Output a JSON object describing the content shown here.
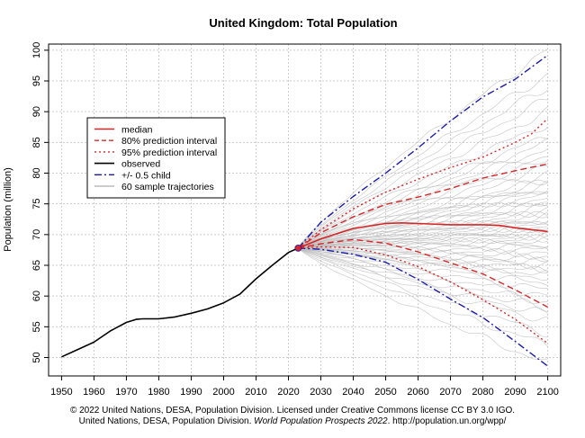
{
  "chart_data": {
    "type": "line",
    "title": "United Kingdom: Total Population",
    "xlabel": "",
    "ylabel": "Population (million)",
    "xlim": [
      1946,
      2104
    ],
    "ylim": [
      47,
      101
    ],
    "x_ticks": [
      1950,
      1960,
      1970,
      1980,
      1990,
      2000,
      2010,
      2020,
      2030,
      2040,
      2050,
      2060,
      2070,
      2080,
      2090,
      2100
    ],
    "y_ticks": [
      50,
      55,
      60,
      65,
      70,
      75,
      80,
      85,
      90,
      95,
      100
    ],
    "grid": true,
    "legend": {
      "position": "top-left",
      "entries": [
        {
          "label": "median",
          "color": "#d62728",
          "style": "solid"
        },
        {
          "label": "80% prediction interval",
          "color": "#d62728",
          "style": "dashed"
        },
        {
          "label": "95% prediction interval",
          "color": "#d62728",
          "style": "dotted"
        },
        {
          "label": "observed",
          "color": "#000000",
          "style": "solid"
        },
        {
          "label": "+/- 0.5 child",
          "color": "#1a1aaa",
          "style": "dashdot"
        },
        {
          "label": "60 sample trajectories",
          "color": "#bbbbbb",
          "style": "solid"
        }
      ]
    },
    "series": [
      {
        "name": "observed",
        "color": "#000000",
        "style": "solid",
        "x": [
          1950,
          1955,
          1960,
          1965,
          1970,
          1973,
          1975,
          1980,
          1985,
          1990,
          1995,
          2000,
          2005,
          2010,
          2015,
          2020,
          2023
        ],
        "y": [
          50.1,
          51.3,
          52.5,
          54.3,
          55.7,
          56.2,
          56.3,
          56.3,
          56.6,
          57.2,
          57.9,
          58.9,
          60.3,
          62.8,
          65.0,
          67.1,
          67.8
        ]
      },
      {
        "name": "median",
        "color": "#d62728",
        "style": "solid",
        "x": [
          2023,
          2030,
          2040,
          2050,
          2055,
          2060,
          2070,
          2080,
          2085,
          2090,
          2100
        ],
        "y": [
          67.8,
          69.3,
          71.0,
          71.8,
          71.9,
          71.8,
          71.6,
          71.6,
          71.5,
          71.1,
          70.5
        ]
      },
      {
        "name": "80% prediction interval (upper)",
        "color": "#d62728",
        "style": "dashed",
        "x": [
          2023,
          2030,
          2040,
          2050,
          2060,
          2070,
          2080,
          2090,
          2100
        ],
        "y": [
          67.8,
          70.3,
          72.9,
          74.9,
          76.1,
          77.5,
          79.2,
          80.4,
          81.5
        ]
      },
      {
        "name": "80% prediction interval (lower)",
        "color": "#d62728",
        "style": "dashed",
        "x": [
          2023,
          2030,
          2040,
          2050,
          2060,
          2070,
          2080,
          2090,
          2100
        ],
        "y": [
          67.8,
          68.5,
          69.2,
          68.6,
          67.2,
          65.4,
          63.6,
          61.0,
          58.2
        ]
      },
      {
        "name": "95% prediction interval (upper)",
        "color": "#d62728",
        "style": "dotted",
        "x": [
          2023,
          2030,
          2040,
          2050,
          2060,
          2070,
          2080,
          2090,
          2095,
          2100
        ],
        "y": [
          67.8,
          70.8,
          74.2,
          76.9,
          79.0,
          80.9,
          82.6,
          85.0,
          86.4,
          88.9
        ]
      },
      {
        "name": "95% prediction interval (lower)",
        "color": "#d62728",
        "style": "dotted",
        "x": [
          2023,
          2030,
          2040,
          2050,
          2060,
          2070,
          2080,
          2090,
          2100
        ],
        "y": [
          67.8,
          68.0,
          67.9,
          66.7,
          64.8,
          62.3,
          59.4,
          56.2,
          52.3
        ]
      },
      {
        "name": "+/- 0.5 child (upper)",
        "color": "#1a1aaa",
        "style": "dashdot",
        "x": [
          2023,
          2030,
          2040,
          2050,
          2060,
          2070,
          2080,
          2090,
          2100
        ],
        "y": [
          67.8,
          72.0,
          76.2,
          80.0,
          84.1,
          88.5,
          92.4,
          95.3,
          99.2
        ]
      },
      {
        "name": "+/- 0.5 child (lower)",
        "color": "#1a1aaa",
        "style": "dashdot",
        "x": [
          2023,
          2030,
          2040,
          2050,
          2060,
          2070,
          2080,
          2090,
          2100
        ],
        "y": [
          67.8,
          67.6,
          66.8,
          65.5,
          62.7,
          59.5,
          56.5,
          52.6,
          48.6
        ]
      }
    ],
    "sample_trajectories": {
      "count": 60,
      "color": "#bbbbbb",
      "start_year": 2023,
      "start_value": 67.8,
      "end_year": 2100,
      "end_values": [
        49,
        52,
        54,
        56,
        57,
        58,
        59,
        60,
        61,
        62,
        63,
        63.5,
        64,
        64.5,
        65,
        65.5,
        66,
        66.5,
        67,
        67.5,
        68,
        68.5,
        69,
        69.3,
        69.6,
        70,
        70.3,
        70.6,
        71,
        71.3,
        71.6,
        72,
        72.4,
        72.8,
        73.2,
        73.6,
        74,
        74.5,
        75,
        75.5,
        76,
        76.5,
        77,
        77.5,
        78,
        78.5,
        79,
        80,
        81,
        82,
        83,
        84,
        85,
        86,
        88,
        90,
        92,
        94,
        96,
        100
      ]
    },
    "marker": {
      "x": 2023,
      "y": 67.8,
      "color": "#d62728"
    }
  },
  "footer": {
    "line1": "© 2022 United Nations, DESA, Population Division. Licensed under Creative Commons license CC BY 3.0 IGO.",
    "line2_prefix": "United Nations, DESA, Population Division. ",
    "line2_title": "World Population Prospects 2022",
    "line2_suffix": ". http://population.un.org/wpp/"
  }
}
